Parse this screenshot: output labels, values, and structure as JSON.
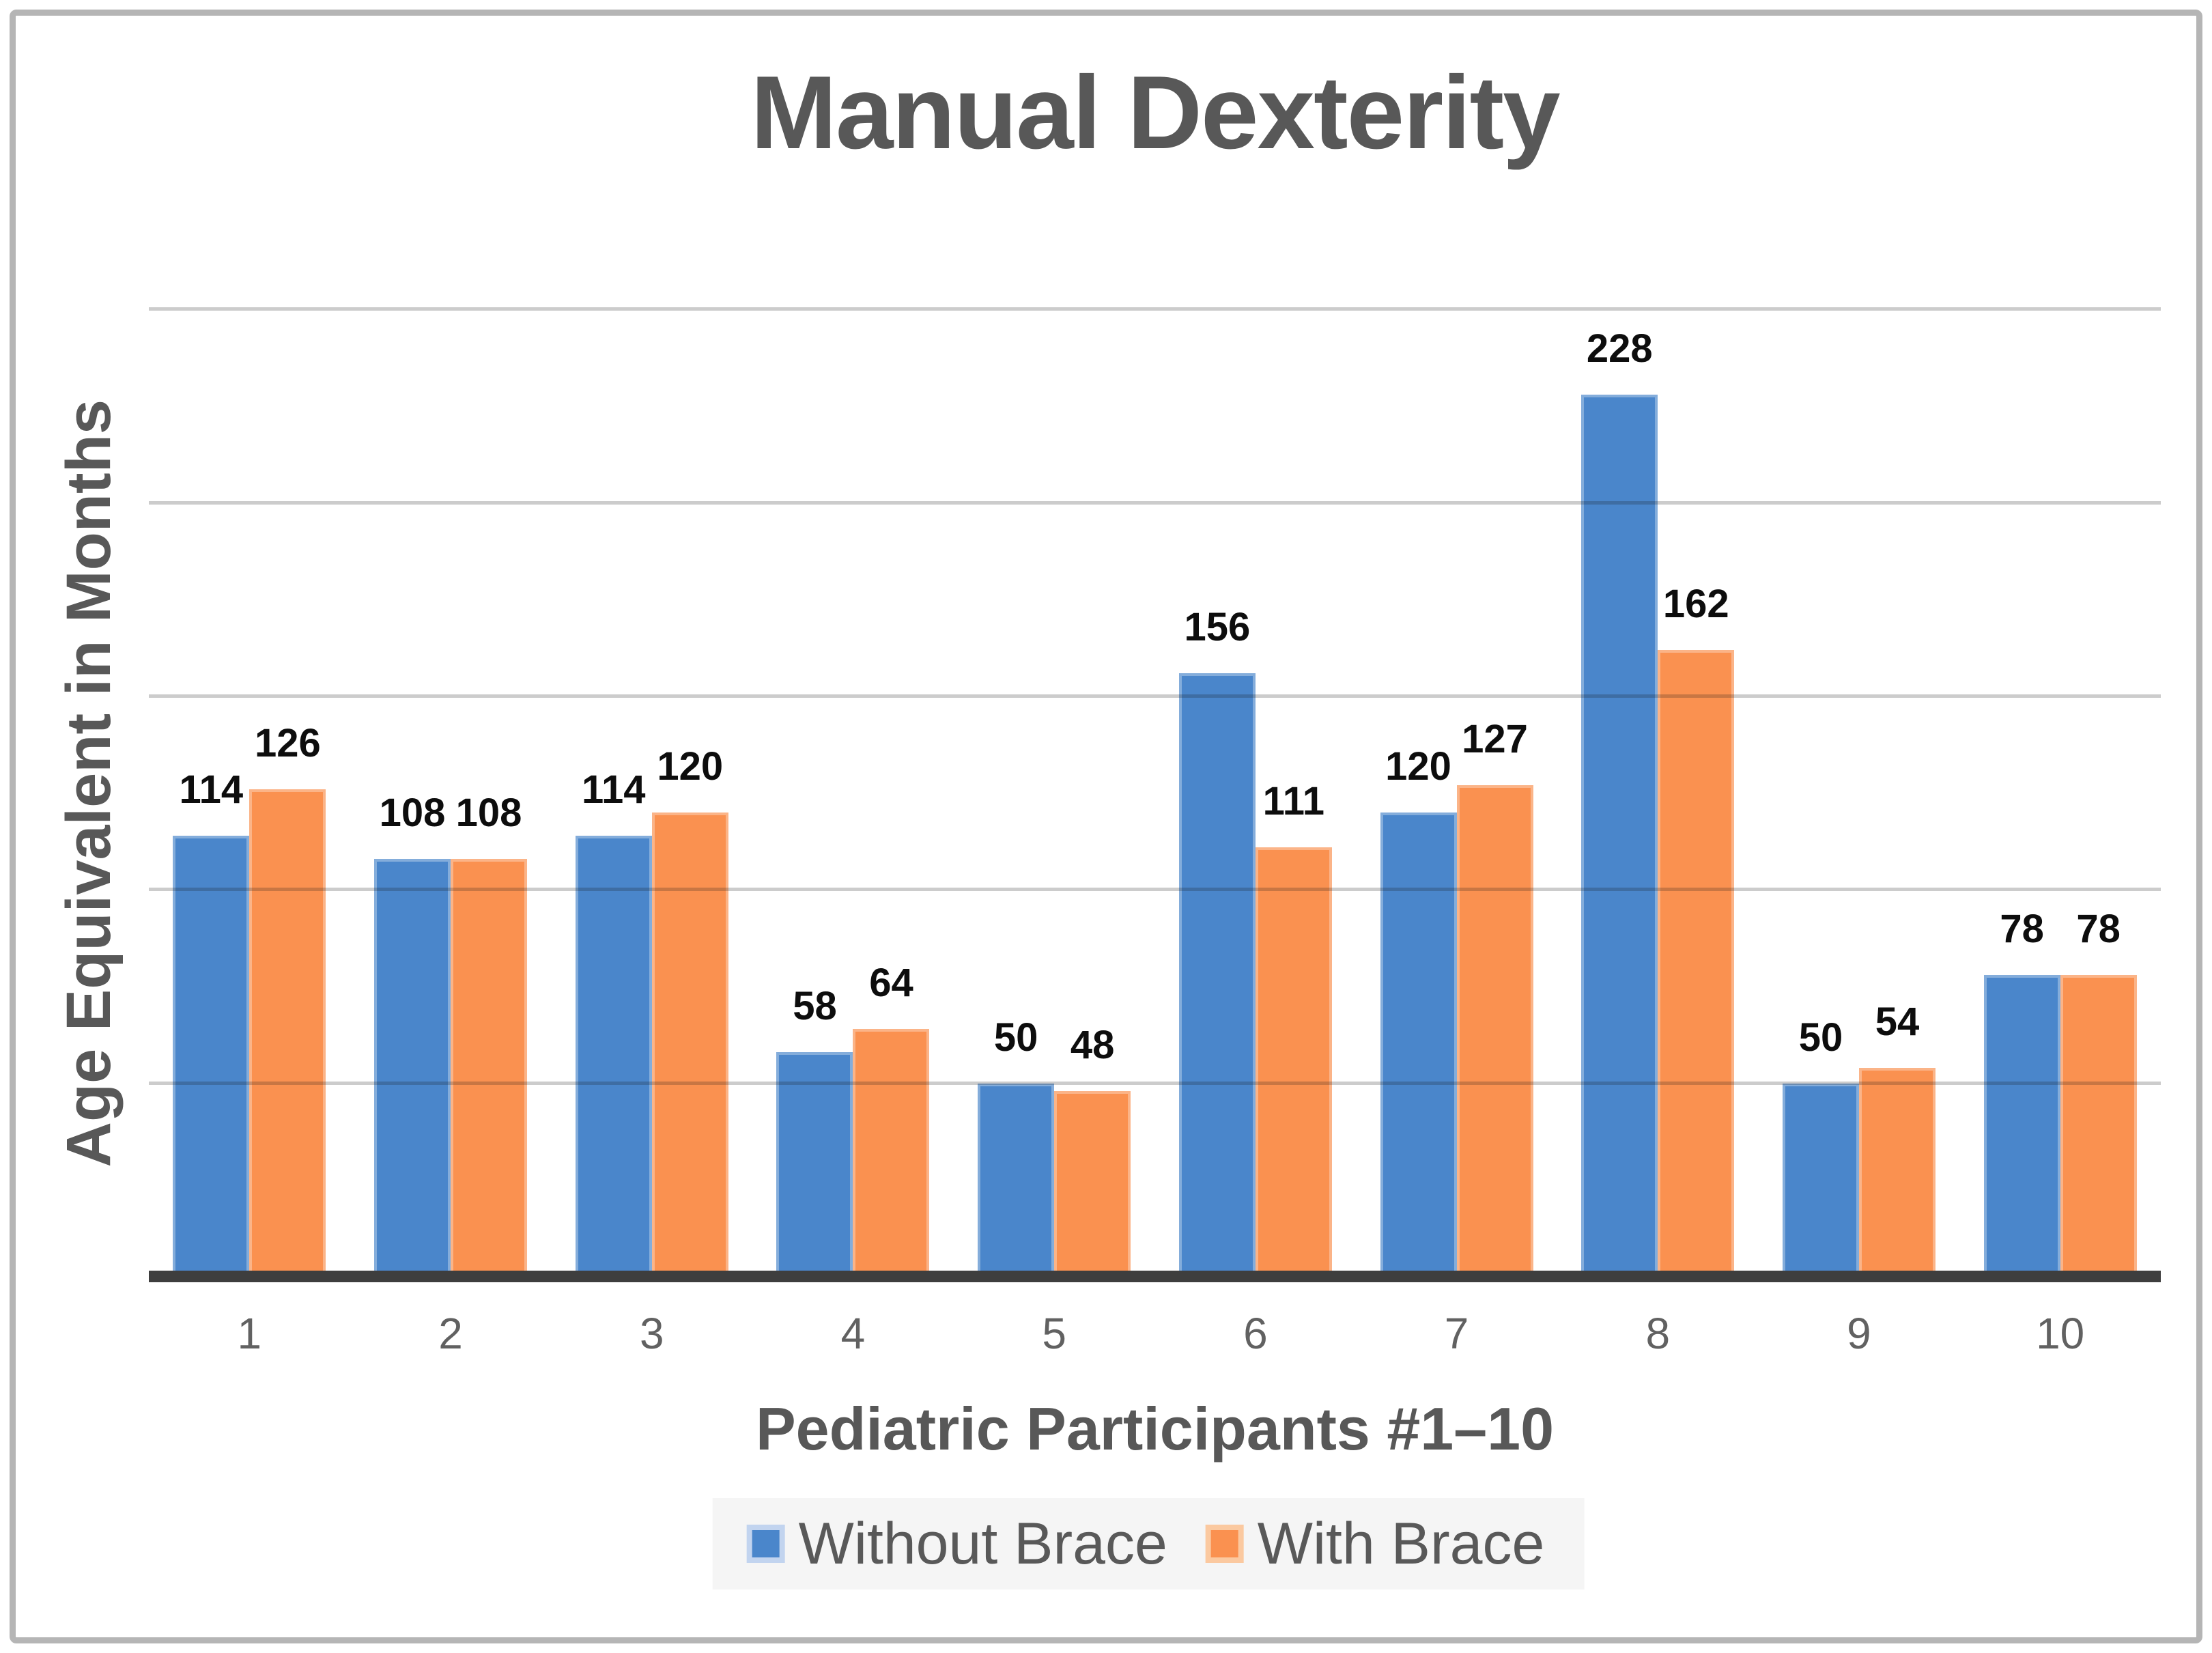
{
  "chart_data": {
    "type": "bar",
    "title": "Manual Dexterity",
    "xlabel": "Pediatric Participants #1–10",
    "ylabel": "Age Equivalent in Months",
    "categories": [
      "1",
      "2",
      "3",
      "4",
      "5",
      "6",
      "7",
      "8",
      "9",
      "10"
    ],
    "series": [
      {
        "name": "Without Brace",
        "color": "#4a86cb",
        "values": [
          114,
          108,
          114,
          58,
          50,
          156,
          120,
          228,
          50,
          78
        ]
      },
      {
        "name": "With Brace",
        "color": "#fa9150",
        "values": [
          126,
          108,
          120,
          64,
          48,
          111,
          127,
          162,
          54,
          78
        ]
      }
    ],
    "ylim": [
      0,
      255
    ],
    "gridline_step": 50,
    "grid": true,
    "y_tick_labels_visible": false,
    "data_labels": true,
    "legend_position": "bottom"
  }
}
